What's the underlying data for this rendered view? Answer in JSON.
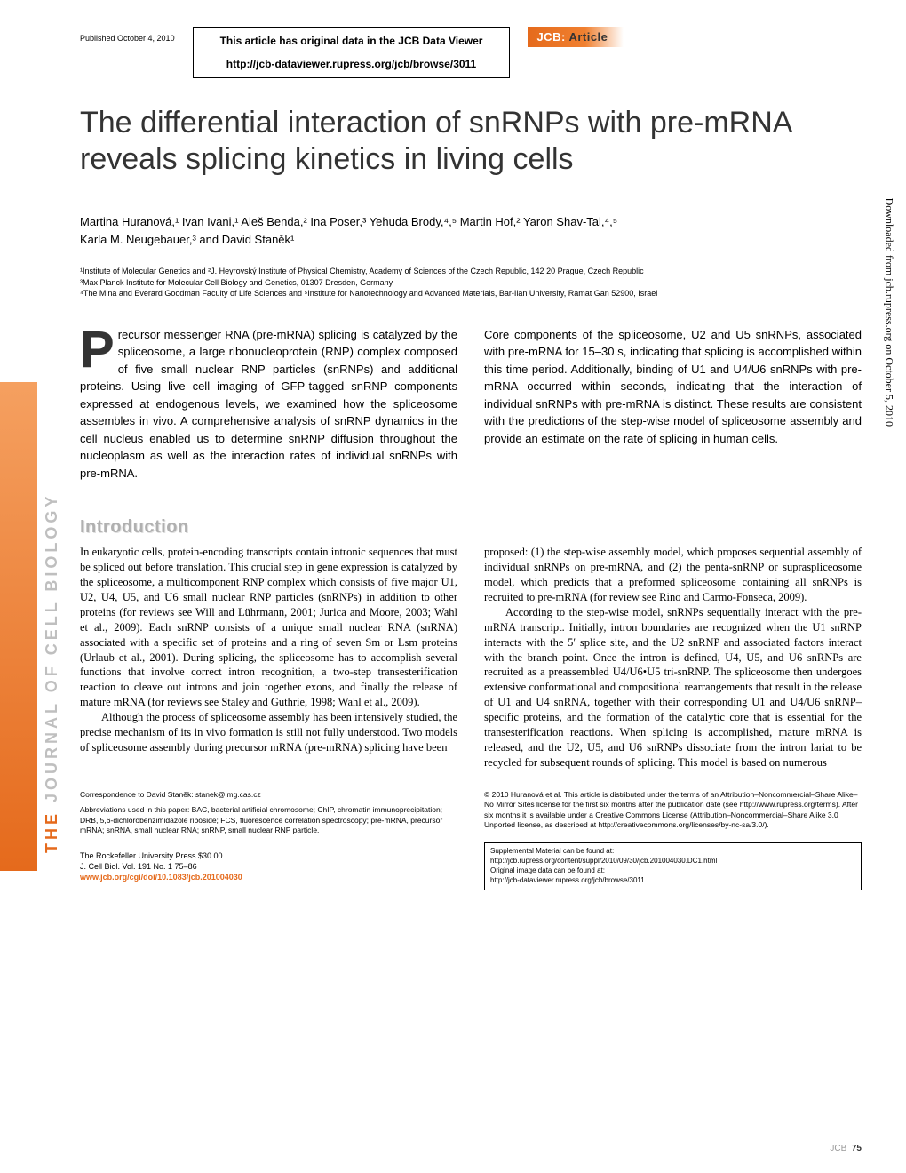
{
  "meta": {
    "published": "Published October 4, 2010",
    "dataviewer_line1": "This article has original data in the JCB Data Viewer",
    "dataviewer_line2": "http://jcb-dataviewer.rupress.org/jcb/browse/3011",
    "badge_prefix": "JCB:",
    "badge_word": "Article"
  },
  "title": "The differential interaction of snRNPs with pre-mRNA reveals splicing kinetics in living cells",
  "authors_line1": "Martina Huranová,¹ Ivan Ivani,¹ Aleš Benda,² Ina Poser,³ Yehuda Brody,⁴,⁵ Martin Hof,² Yaron Shav-Tal,⁴,⁵",
  "authors_line2": "Karla M. Neugebauer,³ and David Staněk¹",
  "affiliations": {
    "a1": "¹Institute of Molecular Genetics and ²J. Heyrovský Institute of Physical Chemistry, Academy of Sciences of the Czech Republic, 142 20 Prague, Czech Republic",
    "a2": "³Max Planck Institute for Molecular Cell Biology and Genetics, 01307 Dresden, Germany",
    "a3": "⁴The Mina and Everard Goodman Faculty of Life Sciences and ⁵Institute for Nanotechnology and Advanced Materials, Bar-Ilan University, Ramat Gan 52900, Israel"
  },
  "abstract": {
    "dropcap": "P",
    "left": "recursor messenger RNA (pre-mRNA) splicing is catalyzed by the spliceosome, a large ribonucleoprotein (RNP) complex composed of five small nuclear RNP particles (snRNPs) and additional proteins. Using live cell imaging of GFP-tagged snRNP components expressed at endogenous levels, we examined how the spliceosome assembles in vivo. A comprehensive analysis of snRNP dynamics in the cell nucleus enabled us to determine snRNP diffusion throughout the nucleoplasm as well as the interaction rates of individual snRNPs with pre-mRNA.",
    "right": "Core components of the spliceosome, U2 and U5 snRNPs, associated with pre-mRNA for 15–30 s, indicating that splicing is accomplished within this time period. Additionally, binding of U1 and U4/U6 snRNPs with pre-mRNA occurred within seconds, indicating that the interaction of individual snRNPs with pre-mRNA is distinct. These results are consistent with the predictions of the step-wise model of spliceosome assembly and provide an estimate on the rate of splicing in human cells."
  },
  "intro_heading": "Introduction",
  "body": {
    "left_p1": "In eukaryotic cells, protein-encoding transcripts contain intronic sequences that must be spliced out before translation. This crucial step in gene expression is catalyzed by the spliceosome, a multicomponent RNP complex which consists of five major U1, U2, U4, U5, and U6 small nuclear RNP particles (snRNPs) in addition to other proteins (for reviews see Will and Lührmann, 2001; Jurica and Moore, 2003; Wahl et al., 2009). Each snRNP consists of a unique small nuclear RNA (snRNA) associated with a specific set of proteins and a ring of seven Sm or Lsm proteins (Urlaub et al., 2001). During splicing, the spliceosome has to accomplish several functions that involve correct intron recognition, a two-step transesterification reaction to cleave out introns and join together exons, and finally the release of mature mRNA (for reviews see Staley and Guthrie, 1998; Wahl et al., 2009).",
    "left_p2": "Although the process of spliceosome assembly has been intensively studied, the precise mechanism of its in vivo formation is still not fully understood. Two models of spliceosome assembly during precursor mRNA (pre-mRNA) splicing have been",
    "right_p1": "proposed: (1) the step-wise assembly model, which proposes sequential assembly of individual snRNPs on pre-mRNA, and (2) the penta-snRNP or supraspliceosome model, which predicts that a preformed spliceosome containing all snRNPs is recruited to pre-mRNA (for review see Rino and Carmo-Fonseca, 2009).",
    "right_p2": "According to the step-wise model, snRNPs sequentially interact with the pre-mRNA transcript. Initially, intron boundaries are recognized when the U1 snRNP interacts with the 5′ splice site, and the U2 snRNP and associated factors interact with the branch point. Once the intron is defined, U4, U5, and U6 snRNPs are recruited as a preassembled U4/U6•U5 tri-snRNP. The spliceosome then undergoes extensive conformational and compositional rearrangements that result in the release of U1 and U4 snRNA, together with their corresponding U1 and U4/U6 snRNP–specific proteins, and the formation of the catalytic core that is essential for the transesterification reactions. When splicing is accomplished, mature mRNA is released, and the U2, U5, and U6 snRNPs dissociate from the intron lariat to be recycled for subsequent rounds of splicing. This model is based on numerous"
  },
  "footer": {
    "correspondence": "Correspondence to David Staněk: stanek@img.cas.cz",
    "abbreviations": "Abbreviations used in this paper: BAC, bacterial artificial chromosome; ChIP, chromatin immunoprecipitation; DRB, 5,6-dichlorobenzimidazole riboside; FCS, fluorescence correlation spectroscopy; pre-mRNA, precursor mRNA; snRNA, small nuclear RNA; snRNP, small nuclear RNP particle.",
    "copyright": "© 2010 Huranová et al. This article is distributed under the terms of an Attribution–Noncommercial–Share Alike–No Mirror Sites license for the first six months after the publication date (see http://www.rupress.org/terms). After six months it is available under a Creative Commons License (Attribution–Noncommercial–Share Alike 3.0 Unported license, as described at http://creativecommons.org/licenses/by-nc-sa/3.0/).",
    "supp_l1": "Supplemental Material can be found at:",
    "supp_l2": "http://jcb.rupress.org/content/suppl/2010/09/30/jcb.201004030.DC1.html",
    "supp_l3": "Original image data can be found at:",
    "supp_l4": "http://jcb-dataviewer.rupress.org/jcb/browse/3011",
    "press1": "The Rockefeller University Press   $30.00",
    "press2": "J. Cell Biol. Vol. 191 No. 1   75–86",
    "press3": "www.jcb.org/cgi/doi/10.1083/jcb.201004030"
  },
  "pagenum": {
    "jcb": "JCB",
    "num": "75"
  },
  "sidebar": {
    "the": "THE ",
    "rest": "JOURNAL OF CELL BIOLOGY"
  },
  "download": "Downloaded from jcb.rupress.org on October 5, 2010",
  "colors": {
    "orange": "#e56a1c",
    "grey_text": "#b0b0b0"
  }
}
